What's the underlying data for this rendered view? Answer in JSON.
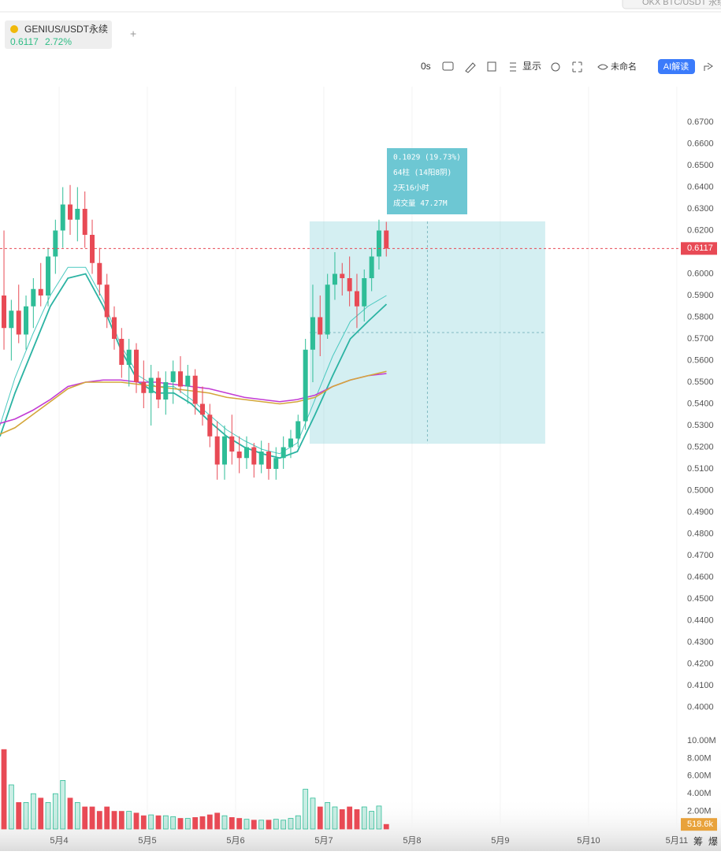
{
  "ui": {
    "search": "OKX BTC/USDT 永续",
    "symbol": "GENIUS/USDT永续",
    "change": "2.72%",
    "plus": "+",
    "interval": "0s",
    "display": "显示",
    "layout": "未命名",
    "ai": "AI解读",
    "side_tabs": [
      "筹",
      "爆"
    ]
  },
  "chart_data": {
    "type": "candlestick",
    "x": [
      3.375,
      3.458,
      3.542,
      3.625,
      3.708,
      3.792,
      3.875,
      3.958,
      4.042,
      4.125,
      4.208,
      4.292,
      4.375,
      4.458,
      4.542,
      4.625,
      4.708,
      4.792,
      4.875,
      4.958,
      5.042,
      5.125,
      5.208,
      5.292,
      5.375,
      5.458,
      5.542,
      5.625,
      5.708,
      5.792,
      5.875,
      5.958,
      6.042,
      6.125,
      6.208,
      6.292,
      6.375,
      6.458,
      6.542,
      6.625,
      6.708,
      6.792,
      6.875,
      6.958,
      7.042,
      7.125,
      7.208,
      7.292,
      7.375,
      7.458,
      7.542,
      7.625,
      7.708
    ],
    "open": [
      0.59,
      0.575,
      0.583,
      0.572,
      0.585,
      0.593,
      0.59,
      0.608,
      0.62,
      0.632,
      0.625,
      0.63,
      0.618,
      0.605,
      0.595,
      0.58,
      0.57,
      0.558,
      0.565,
      0.55,
      0.545,
      0.552,
      0.542,
      0.55,
      0.555,
      0.548,
      0.553,
      0.54,
      0.535,
      0.525,
      0.512,
      0.525,
      0.518,
      0.515,
      0.52,
      0.512,
      0.518,
      0.51,
      0.515,
      0.52,
      0.524,
      0.532,
      0.565,
      0.58,
      0.572,
      0.595,
      0.6,
      0.598,
      0.592,
      0.585,
      0.598,
      0.608,
      0.62
    ],
    "high": [
      0.62,
      0.588,
      0.595,
      0.59,
      0.598,
      0.605,
      0.612,
      0.625,
      0.64,
      0.641,
      0.64,
      0.638,
      0.625,
      0.612,
      0.6,
      0.585,
      0.575,
      0.57,
      0.568,
      0.56,
      0.558,
      0.555,
      0.555,
      0.56,
      0.562,
      0.558,
      0.556,
      0.548,
      0.54,
      0.532,
      0.53,
      0.535,
      0.525,
      0.525,
      0.522,
      0.523,
      0.522,
      0.52,
      0.525,
      0.528,
      0.535,
      0.57,
      0.595,
      0.59,
      0.6,
      0.61,
      0.605,
      0.608,
      0.6,
      0.602,
      0.612,
      0.625,
      0.624
    ],
    "low": [
      0.565,
      0.56,
      0.568,
      0.565,
      0.575,
      0.585,
      0.585,
      0.6,
      0.612,
      0.618,
      0.615,
      0.612,
      0.6,
      0.59,
      0.575,
      0.565,
      0.552,
      0.548,
      0.545,
      0.538,
      0.53,
      0.538,
      0.535,
      0.54,
      0.545,
      0.54,
      0.535,
      0.53,
      0.52,
      0.505,
      0.505,
      0.512,
      0.508,
      0.51,
      0.506,
      0.508,
      0.505,
      0.505,
      0.51,
      0.515,
      0.52,
      0.528,
      0.55,
      0.562,
      0.57,
      0.588,
      0.59,
      0.585,
      0.575,
      0.578,
      0.592,
      0.602,
      0.608
    ],
    "close": [
      0.575,
      0.583,
      0.572,
      0.585,
      0.593,
      0.59,
      0.608,
      0.62,
      0.632,
      0.625,
      0.63,
      0.618,
      0.605,
      0.595,
      0.58,
      0.57,
      0.558,
      0.565,
      0.55,
      0.545,
      0.552,
      0.542,
      0.55,
      0.555,
      0.548,
      0.553,
      0.54,
      0.535,
      0.525,
      0.512,
      0.525,
      0.518,
      0.515,
      0.52,
      0.512,
      0.518,
      0.51,
      0.515,
      0.52,
      0.524,
      0.532,
      0.565,
      0.58,
      0.572,
      0.595,
      0.6,
      0.598,
      0.592,
      0.585,
      0.598,
      0.608,
      0.62,
      0.6117
    ],
    "volume": [
      9,
      5,
      3,
      3,
      4,
      3.5,
      3,
      4,
      5.5,
      3.5,
      3,
      2.5,
      2.5,
      2,
      2.5,
      2,
      2,
      2,
      1.8,
      1.5,
      1.6,
      1.5,
      1.5,
      1.4,
      1.2,
      1.2,
      1.3,
      1.4,
      1.6,
      1.8,
      1.5,
      1.3,
      1.2,
      1.1,
      1.0,
      1.0,
      1.0,
      1.1,
      1.0,
      1.2,
      1.5,
      4.5,
      3.5,
      2.5,
      3,
      2.5,
      2.2,
      2.5,
      2.2,
      2.5,
      2.0,
      2.6,
      0.5186
    ],
    "volume_last": {
      "value": 0.5186,
      "label": "518.6k"
    },
    "up_color": "#2ebd97",
    "down_color": "#e84a55",
    "ma_x": [
      3.33,
      3.5,
      3.7,
      3.9,
      4.1,
      4.3,
      4.5,
      4.7,
      4.9,
      5.1,
      5.3,
      5.5,
      5.7,
      5.9,
      6.1,
      6.3,
      6.5,
      6.7,
      6.9,
      7.1,
      7.3,
      7.5,
      7.71
    ],
    "moving_averages": [
      {
        "color": "#2bb3a3",
        "width": 1.8,
        "values": [
          0.525,
          0.545,
          0.565,
          0.585,
          0.598,
          0.6,
          0.585,
          0.565,
          0.55,
          0.545,
          0.545,
          0.54,
          0.532,
          0.525,
          0.52,
          0.517,
          0.515,
          0.518,
          0.535,
          0.553,
          0.57,
          0.578,
          0.586
        ]
      },
      {
        "color": "#4cc9c0",
        "width": 1,
        "values": [
          0.53,
          0.552,
          0.572,
          0.59,
          0.603,
          0.603,
          0.588,
          0.567,
          0.553,
          0.548,
          0.548,
          0.542,
          0.535,
          0.528,
          0.523,
          0.519,
          0.517,
          0.522,
          0.542,
          0.562,
          0.578,
          0.585,
          0.59
        ]
      },
      {
        "color": "#c23bd4",
        "width": 1.6,
        "values": [
          0.531,
          0.533,
          0.537,
          0.542,
          0.548,
          0.55,
          0.551,
          0.551,
          0.55,
          0.55,
          0.549,
          0.548,
          0.547,
          0.545,
          0.543,
          0.542,
          0.541,
          0.542,
          0.544,
          0.548,
          0.551,
          0.553,
          0.554
        ]
      },
      {
        "color": "#d4a63a",
        "width": 1.6,
        "values": [
          0.526,
          0.529,
          0.535,
          0.541,
          0.547,
          0.55,
          0.55,
          0.55,
          0.549,
          0.548,
          0.547,
          0.546,
          0.545,
          0.543,
          0.542,
          0.541,
          0.54,
          0.541,
          0.543,
          0.548,
          0.551,
          0.553,
          0.555
        ]
      }
    ],
    "last_price": 0.6117,
    "xlim": [
      3.33,
      11.01
    ],
    "xticks": [
      {
        "value": 4,
        "label": "5月4"
      },
      {
        "value": 5,
        "label": "5月5"
      },
      {
        "value": 6,
        "label": "5月6"
      },
      {
        "value": 7,
        "label": "5月7"
      },
      {
        "value": 8,
        "label": "5月8"
      },
      {
        "value": 9,
        "label": "5月9"
      },
      {
        "value": 10,
        "label": "5月10"
      },
      {
        "value": 11,
        "label": "5月11"
      }
    ],
    "ylim": [
      0.39,
      0.68
    ],
    "yticks": [
      {
        "value": 0.4,
        "label": "0.4000"
      },
      {
        "value": 0.41,
        "label": "0.4100"
      },
      {
        "value": 0.42,
        "label": "0.4200"
      },
      {
        "value": 0.43,
        "label": "0.4300"
      },
      {
        "value": 0.44,
        "label": "0.4400"
      },
      {
        "value": 0.45,
        "label": "0.4500"
      },
      {
        "value": 0.46,
        "label": "0.4600"
      },
      {
        "value": 0.47,
        "label": "0.4700"
      },
      {
        "value": 0.48,
        "label": "0.4800"
      },
      {
        "value": 0.49,
        "label": "0.4900"
      },
      {
        "value": 0.5,
        "label": "0.5000"
      },
      {
        "value": 0.51,
        "label": "0.5100"
      },
      {
        "value": 0.52,
        "label": "0.5200"
      },
      {
        "value": 0.53,
        "label": "0.5300"
      },
      {
        "value": 0.54,
        "label": "0.5400"
      },
      {
        "value": 0.55,
        "label": "0.5500"
      },
      {
        "value": 0.56,
        "label": "0.5600"
      },
      {
        "value": 0.57,
        "label": "0.5700"
      },
      {
        "value": 0.58,
        "label": "0.5800"
      },
      {
        "value": 0.59,
        "label": "0.5900"
      },
      {
        "value": 0.6,
        "label": "0.6000"
      },
      {
        "value": 0.61,
        "label": "0.6100"
      },
      {
        "value": 0.62,
        "label": "0.6200"
      },
      {
        "value": 0.63,
        "label": "0.6300"
      },
      {
        "value": 0.64,
        "label": "0.6400"
      },
      {
        "value": 0.65,
        "label": "0.6500"
      },
      {
        "value": 0.66,
        "label": "0.6600"
      },
      {
        "value": 0.67,
        "label": "0.6700"
      }
    ],
    "vlim": [
      0,
      12
    ],
    "vticks": [
      {
        "value": 2,
        "label": "2.00M"
      },
      {
        "value": 4,
        "label": "4.00M"
      },
      {
        "value": 6,
        "label": "6.00M"
      },
      {
        "value": 8,
        "label": "8.00M"
      },
      {
        "value": 10,
        "label": "10.00M"
      }
    ],
    "grid": true,
    "measure": {
      "x": [
        6.839,
        9.509
      ],
      "y": [
        0.5216,
        0.6242
      ],
      "lines": [
        "0.1029 (19.73%)",
        "64柱 (14阳8阴)",
        "2天16小时",
        "成交量 47.27M"
      ]
    }
  }
}
